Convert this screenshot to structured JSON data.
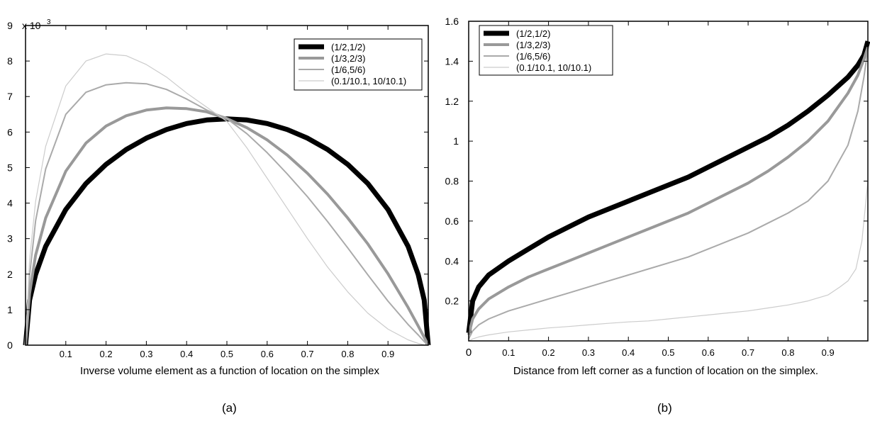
{
  "panels": {
    "a": {
      "caption": "(a)"
    },
    "b": {
      "caption": "(b)"
    }
  },
  "colors": {
    "series1": "#000000",
    "series2": "#999999",
    "series3": "#aaaaaa",
    "series4": "#cccccc",
    "axis": "#000000"
  },
  "chart_data": [
    {
      "type": "line",
      "title": "",
      "xlabel": "Inverse volume element as a function of location on the simplex",
      "ylabel": "",
      "y_multiplier_label": "x 10",
      "y_multiplier_exponent": "3",
      "xlim": [
        0,
        1
      ],
      "ylim": [
        0,
        9
      ],
      "x_ticks": [
        0.1,
        0.2,
        0.3,
        0.4,
        0.5,
        0.6,
        0.7,
        0.8,
        0.9
      ],
      "x_tick_labels": [
        "0.1",
        "0.2",
        "0.3",
        "0.4",
        "0.5",
        "0.6",
        "0.7",
        "0.8",
        "0.9"
      ],
      "y_ticks": [
        0,
        1,
        2,
        3,
        4,
        5,
        6,
        7,
        8,
        9
      ],
      "y_tick_labels": [
        "0",
        "1",
        "2",
        "3",
        "4",
        "5",
        "6",
        "7",
        "8",
        "9"
      ],
      "grid": false,
      "legend_position": "top-right",
      "series": [
        {
          "name": "(1/2,1/2)",
          "stroke_width": 7,
          "color": "#000000",
          "x": [
            0,
            0.01,
            0.025,
            0.05,
            0.1,
            0.15,
            0.2,
            0.25,
            0.3,
            0.35,
            0.4,
            0.45,
            0.5,
            0.55,
            0.6,
            0.65,
            0.7,
            0.75,
            0.8,
            0.85,
            0.9,
            0.95,
            0.975,
            0.99,
            1
          ],
          "y": [
            0,
            1.27,
            1.99,
            2.78,
            3.82,
            4.55,
            5.09,
            5.51,
            5.83,
            6.07,
            6.24,
            6.34,
            6.37,
            6.34,
            6.24,
            6.07,
            5.83,
            5.51,
            5.09,
            4.55,
            3.82,
            2.78,
            1.99,
            1.27,
            0
          ]
        },
        {
          "name": "(1/3,2/3)",
          "stroke_width": 4,
          "color": "#999999",
          "x": [
            0,
            0.01,
            0.025,
            0.05,
            0.1,
            0.15,
            0.2,
            0.25,
            0.3,
            0.35,
            0.4,
            0.45,
            0.5,
            0.55,
            0.6,
            0.65,
            0.7,
            0.75,
            0.8,
            0.85,
            0.9,
            0.95,
            0.975,
            0.99,
            1
          ],
          "y": [
            0,
            1.45,
            2.53,
            3.58,
            4.9,
            5.69,
            6.17,
            6.46,
            6.62,
            6.68,
            6.66,
            6.57,
            6.38,
            6.12,
            5.78,
            5.35,
            4.84,
            4.25,
            3.58,
            2.85,
            2.01,
            1.06,
            0.54,
            0.22,
            0
          ]
        },
        {
          "name": "(1/6,5/6)",
          "stroke_width": 2,
          "color": "#aaaaaa",
          "x": [
            0,
            0.01,
            0.025,
            0.05,
            0.1,
            0.15,
            0.2,
            0.25,
            0.3,
            0.35,
            0.4,
            0.45,
            0.5,
            0.55,
            0.6,
            0.65,
            0.7,
            0.75,
            0.8,
            0.85,
            0.9,
            0.95,
            0.975,
            0.99,
            1
          ],
          "y": [
            0,
            1.95,
            3.5,
            4.96,
            6.5,
            7.12,
            7.33,
            7.39,
            7.36,
            7.2,
            6.93,
            6.62,
            6.38,
            5.95,
            5.42,
            4.82,
            4.18,
            3.48,
            2.74,
            1.98,
            1.24,
            0.58,
            0.29,
            0.1,
            0
          ]
        },
        {
          "name": "(0.1/10.1, 10/10.1)",
          "stroke_width": 1.2,
          "color": "#cccccc",
          "x": [
            0,
            0.01,
            0.025,
            0.05,
            0.1,
            0.15,
            0.2,
            0.25,
            0.3,
            0.35,
            0.4,
            0.45,
            0.5,
            0.55,
            0.6,
            0.65,
            0.7,
            0.75,
            0.8,
            0.85,
            0.9,
            0.95,
            0.975,
            0.99,
            1
          ],
          "y": [
            0,
            2.4,
            4.05,
            5.6,
            7.3,
            8.0,
            8.2,
            8.15,
            7.9,
            7.55,
            7.1,
            6.7,
            6.3,
            5.55,
            4.7,
            3.85,
            3.0,
            2.2,
            1.5,
            0.9,
            0.45,
            0.15,
            0.05,
            0.01,
            0
          ]
        }
      ]
    },
    {
      "type": "line",
      "title": "",
      "xlabel": "Distance from left corner as a function of location on the simplex.",
      "ylabel": "",
      "xlim": [
        0,
        1
      ],
      "ylim": [
        0,
        1.6
      ],
      "x_ticks": [
        0,
        0.1,
        0.2,
        0.3,
        0.4,
        0.5,
        0.6,
        0.7,
        0.8,
        0.9
      ],
      "x_tick_labels": [
        "0",
        "0.1",
        "0.2",
        "0.3",
        "0.4",
        "0.5",
        "0.6",
        "0.7",
        "0.8",
        "0.9"
      ],
      "y_ticks": [
        0.2,
        0.4,
        0.6,
        0.8,
        1.0,
        1.2,
        1.4,
        1.6
      ],
      "y_tick_labels": [
        "0.2",
        "0.4",
        "0.6",
        "0.8",
        "1",
        "1.2",
        "1.4",
        "1.6"
      ],
      "grid": false,
      "legend_position": "top-left",
      "series": [
        {
          "name": "(1/2,1/2)",
          "stroke_width": 7,
          "color": "#000000",
          "x": [
            0,
            0.01,
            0.025,
            0.05,
            0.1,
            0.15,
            0.2,
            0.25,
            0.3,
            0.35,
            0.4,
            0.45,
            0.5,
            0.55,
            0.6,
            0.65,
            0.7,
            0.75,
            0.8,
            0.85,
            0.9,
            0.95,
            0.975,
            0.99,
            1
          ],
          "y": [
            0.04,
            0.2,
            0.27,
            0.33,
            0.4,
            0.46,
            0.52,
            0.57,
            0.62,
            0.66,
            0.7,
            0.74,
            0.78,
            0.82,
            0.87,
            0.92,
            0.97,
            1.02,
            1.08,
            1.15,
            1.23,
            1.32,
            1.38,
            1.43,
            1.5
          ]
        },
        {
          "name": "(1/3,2/3)",
          "stroke_width": 4,
          "color": "#999999",
          "x": [
            0,
            0.01,
            0.025,
            0.05,
            0.1,
            0.15,
            0.2,
            0.25,
            0.3,
            0.35,
            0.4,
            0.45,
            0.5,
            0.55,
            0.6,
            0.65,
            0.7,
            0.75,
            0.8,
            0.85,
            0.9,
            0.95,
            0.975,
            0.99,
            1
          ],
          "y": [
            0.03,
            0.11,
            0.16,
            0.21,
            0.27,
            0.32,
            0.36,
            0.4,
            0.44,
            0.48,
            0.52,
            0.56,
            0.6,
            0.64,
            0.69,
            0.74,
            0.79,
            0.85,
            0.92,
            1.0,
            1.1,
            1.24,
            1.33,
            1.41,
            1.47
          ]
        },
        {
          "name": "(1/6,5/6)",
          "stroke_width": 2,
          "color": "#aaaaaa",
          "x": [
            0,
            0.01,
            0.025,
            0.05,
            0.1,
            0.15,
            0.2,
            0.25,
            0.3,
            0.35,
            0.4,
            0.45,
            0.5,
            0.55,
            0.6,
            0.65,
            0.7,
            0.75,
            0.8,
            0.85,
            0.9,
            0.95,
            0.975,
            0.99,
            1
          ],
          "y": [
            0.01,
            0.05,
            0.08,
            0.11,
            0.15,
            0.18,
            0.21,
            0.24,
            0.27,
            0.3,
            0.33,
            0.36,
            0.39,
            0.42,
            0.46,
            0.5,
            0.54,
            0.59,
            0.64,
            0.7,
            0.8,
            0.98,
            1.15,
            1.32,
            1.46
          ]
        },
        {
          "name": "(0.1/10.1, 10/10.1)",
          "stroke_width": 1.2,
          "color": "#cccccc",
          "x": [
            0,
            0.01,
            0.025,
            0.05,
            0.1,
            0.15,
            0.2,
            0.25,
            0.3,
            0.35,
            0.4,
            0.45,
            0.5,
            0.55,
            0.6,
            0.65,
            0.7,
            0.75,
            0.8,
            0.85,
            0.9,
            0.93,
            0.95,
            0.97,
            0.985,
            1
          ],
          "y": [
            0.0,
            0.01,
            0.02,
            0.03,
            0.045,
            0.055,
            0.065,
            0.072,
            0.08,
            0.088,
            0.095,
            0.1,
            0.11,
            0.12,
            0.13,
            0.14,
            0.15,
            0.165,
            0.18,
            0.2,
            0.23,
            0.27,
            0.3,
            0.36,
            0.5,
            0.8
          ]
        }
      ]
    }
  ]
}
